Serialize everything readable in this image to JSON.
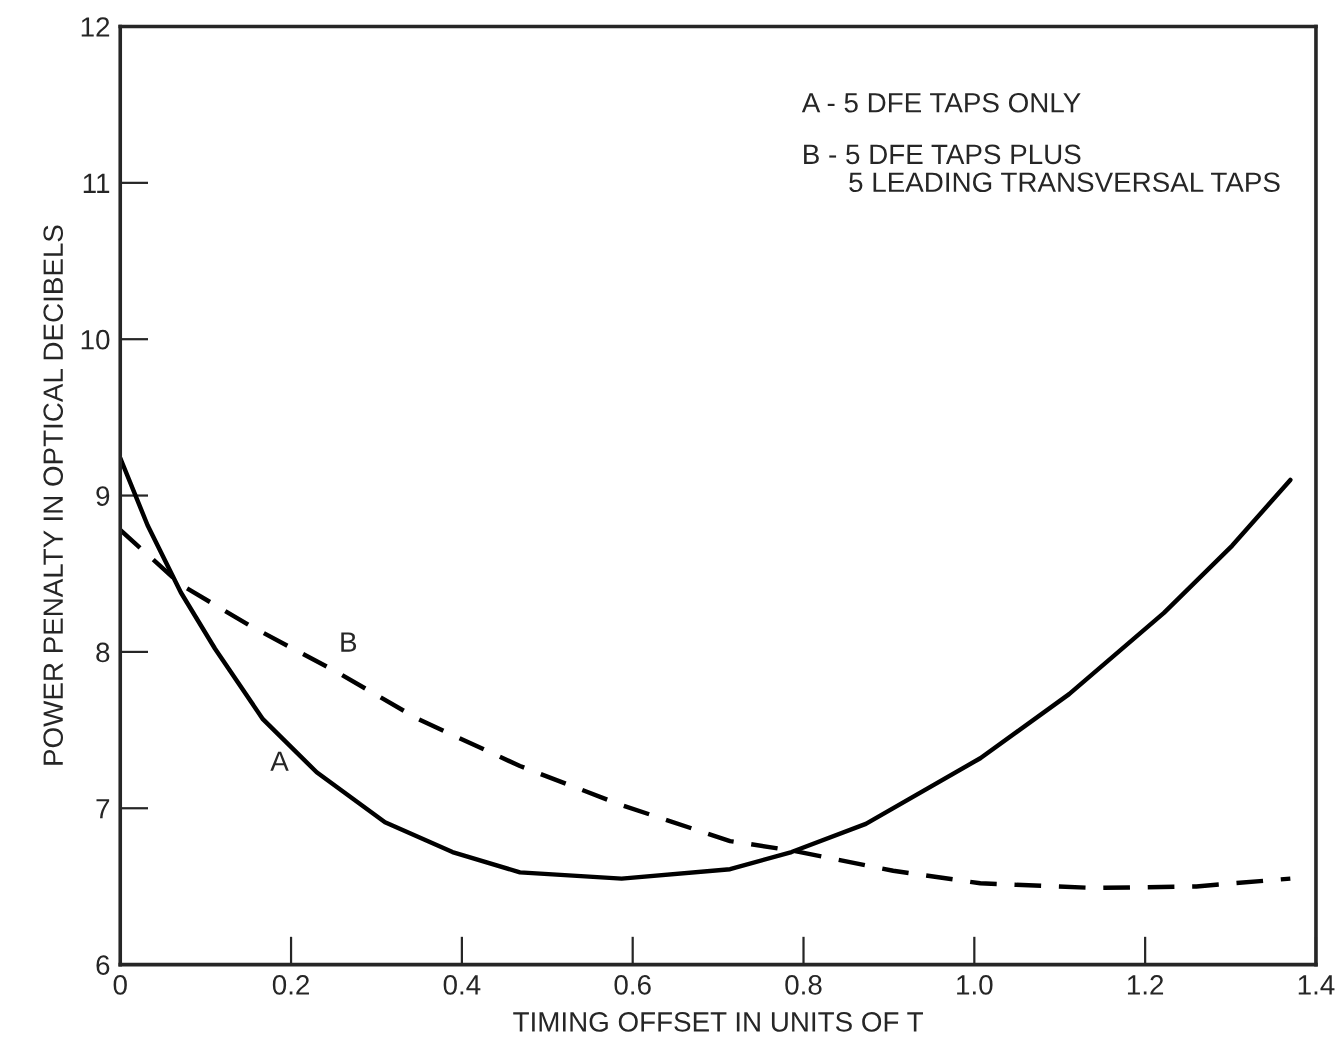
{
  "chart_data": {
    "type": "line",
    "xlabel": "TIMING OFFSET IN UNITS OF T",
    "ylabel": "POWER PENALTY IN OPTICAL DECIBELS",
    "xlim": [
      0,
      1.4
    ],
    "xticks": [
      0,
      0.2,
      0.4,
      0.6,
      0.8,
      {
        "value": 1.0,
        "label": "1.0"
      },
      1.2,
      1.4
    ],
    "ylim": [
      6,
      12
    ],
    "yticks": [
      6,
      7,
      8,
      9,
      10,
      11,
      12
    ],
    "grid": false,
    "legend": false,
    "series": [
      {
        "color": "#000000",
        "line_style": "solid",
        "x": [
          0,
          0.032,
          0.071,
          0.111,
          0.167,
          0.23,
          0.31,
          0.389,
          0.468,
          0.587,
          0.714,
          0.786,
          0.873,
          1.007,
          1.111,
          1.222,
          1.302,
          1.37
        ],
        "values": [
          9.24,
          8.81,
          8.38,
          8.02,
          7.57,
          7.23,
          6.91,
          6.72,
          6.59,
          6.55,
          6.61,
          6.72,
          6.9,
          7.32,
          7.73,
          8.25,
          8.68,
          9.1
        ]
      },
      {
        "color": "#000000",
        "line_style": "dashed",
        "x": [
          0,
          0.071,
          0.151,
          0.254,
          0.349,
          0.468,
          0.587,
          0.714,
          0.786,
          0.905,
          1.007,
          1.14,
          1.26,
          1.37
        ],
        "values": [
          8.78,
          8.43,
          8.17,
          7.87,
          7.57,
          7.27,
          7.02,
          6.79,
          6.73,
          6.6,
          6.52,
          6.49,
          6.5,
          6.55
        ]
      }
    ],
    "annotations": [
      {
        "text": "A",
        "x": 0.167,
        "y": 7.57
      },
      {
        "text": "B",
        "x": 0.254,
        "y": 7.87
      },
      "A - 5 DFE TAPS ONLY",
      "B - 5 DFE TAPS PLUS\n      5 LEADING TRANSVERSAL TAPS"
    ]
  }
}
